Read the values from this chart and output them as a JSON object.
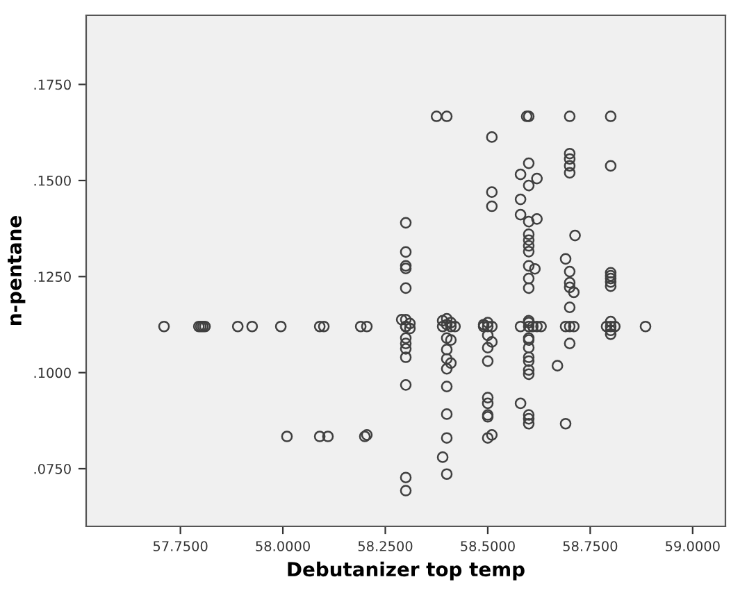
{
  "chart_data": {
    "type": "scatter",
    "xlabel": "Debutanizer top temp",
    "ylabel": "n-pentane",
    "marker": "circle",
    "grid": false,
    "legend": false,
    "xlim": [
      57.52,
      59.08
    ],
    "ylim": [
      0.06,
      0.193
    ],
    "xticks": [
      {
        "value": 57.75,
        "label": "57.7500"
      },
      {
        "value": 58.0,
        "label": "58.0000"
      },
      {
        "value": 58.25,
        "label": "58.2500"
      },
      {
        "value": 58.5,
        "label": "58.5000"
      },
      {
        "value": 58.75,
        "label": "58.7500"
      },
      {
        "value": 59.0,
        "label": "59.0000"
      }
    ],
    "yticks": [
      {
        "value": 0.075,
        "label": ".0750"
      },
      {
        "value": 0.1,
        "label": ".1000"
      },
      {
        "value": 0.125,
        "label": ".1250"
      },
      {
        "value": 0.15,
        "label": ".1500"
      },
      {
        "value": 0.175,
        "label": ".1750"
      }
    ],
    "series": [
      {
        "color": "#404040",
        "x": [
          57.71,
          57.795,
          57.8,
          57.805,
          57.81,
          57.89,
          57.925,
          57.995,
          58.09,
          58.1,
          58.19,
          58.205,
          58.01,
          58.09,
          58.11,
          58.2,
          58.205,
          58.3,
          58.3,
          58.3,
          58.3,
          58.3,
          58.3,
          58.29,
          58.31,
          58.3,
          58.3,
          58.31,
          58.3,
          58.3,
          58.3,
          58.3,
          58.3,
          58.3,
          58.3,
          58.375,
          58.4,
          58.4,
          58.39,
          58.41,
          58.4,
          58.39,
          58.41,
          58.42,
          58.4,
          58.41,
          58.4,
          58.4,
          58.41,
          58.4,
          58.4,
          58.4,
          58.4,
          58.39,
          58.4,
          58.51,
          58.51,
          58.51,
          58.5,
          58.49,
          58.5,
          58.49,
          58.51,
          58.5,
          58.51,
          58.5,
          58.5,
          58.5,
          58.5,
          58.5,
          58.5,
          58.51,
          58.5,
          58.595,
          58.6,
          58.6,
          58.58,
          58.62,
          58.6,
          58.58,
          58.58,
          58.62,
          58.6,
          58.6,
          58.6,
          58.6,
          58.6,
          58.6,
          58.615,
          58.6,
          58.6,
          58.6,
          58.6,
          58.58,
          58.6,
          58.61,
          58.62,
          58.63,
          58.6,
          58.6,
          58.6,
          58.6,
          58.6,
          58.6,
          58.6,
          58.58,
          58.6,
          58.6,
          58.6,
          58.7,
          58.7,
          58.7,
          58.7,
          58.7,
          58.713,
          58.69,
          58.7,
          58.7,
          58.7,
          58.71,
          58.7,
          58.69,
          58.7,
          58.71,
          58.7,
          58.67,
          58.69,
          58.8,
          58.8,
          58.8,
          58.8,
          58.8,
          58.8,
          58.8,
          58.8,
          58.79,
          58.8,
          58.81,
          58.8,
          58.8,
          58.885
        ],
        "values": [
          0.112,
          0.112,
          0.112,
          0.112,
          0.112,
          0.112,
          0.112,
          0.112,
          0.112,
          0.112,
          0.112,
          0.112,
          0.0834,
          0.0834,
          0.0834,
          0.0834,
          0.0838,
          0.139,
          0.1314,
          0.1278,
          0.1271,
          0.122,
          0.1138,
          0.1138,
          0.1128,
          0.112,
          0.112,
          0.1115,
          0.109,
          0.1076,
          0.1062,
          0.104,
          0.0968,
          0.0727,
          0.0693,
          0.1667,
          0.1667,
          0.114,
          0.1135,
          0.113,
          0.1125,
          0.112,
          0.112,
          0.112,
          0.109,
          0.1085,
          0.106,
          0.1036,
          0.1025,
          0.101,
          0.0964,
          0.0892,
          0.083,
          0.078,
          0.0736,
          0.1613,
          0.147,
          0.1433,
          0.113,
          0.1125,
          0.112,
          0.112,
          0.112,
          0.1097,
          0.108,
          0.1065,
          0.103,
          0.0935,
          0.092,
          0.089,
          0.0885,
          0.0838,
          0.083,
          0.1667,
          0.1667,
          0.1545,
          0.1516,
          0.1505,
          0.1487,
          0.1451,
          0.1411,
          0.14,
          0.1393,
          0.136,
          0.1345,
          0.133,
          0.1315,
          0.1278,
          0.127,
          0.1245,
          0.122,
          0.1135,
          0.113,
          0.112,
          0.112,
          0.112,
          0.112,
          0.112,
          0.109,
          0.1085,
          0.1065,
          0.104,
          0.103,
          0.1007,
          0.0996,
          0.092,
          0.089,
          0.088,
          0.0867,
          0.1667,
          0.157,
          0.1556,
          0.1538,
          0.152,
          0.1357,
          0.1296,
          0.1263,
          0.1234,
          0.1222,
          0.1209,
          0.117,
          0.112,
          0.112,
          0.112,
          0.1076,
          0.1018,
          0.0867,
          0.1667,
          0.1538,
          0.126,
          0.1252,
          0.1245,
          0.1236,
          0.1225,
          0.1133,
          0.112,
          0.112,
          0.112,
          0.111,
          0.11,
          0.112
        ]
      }
    ]
  }
}
